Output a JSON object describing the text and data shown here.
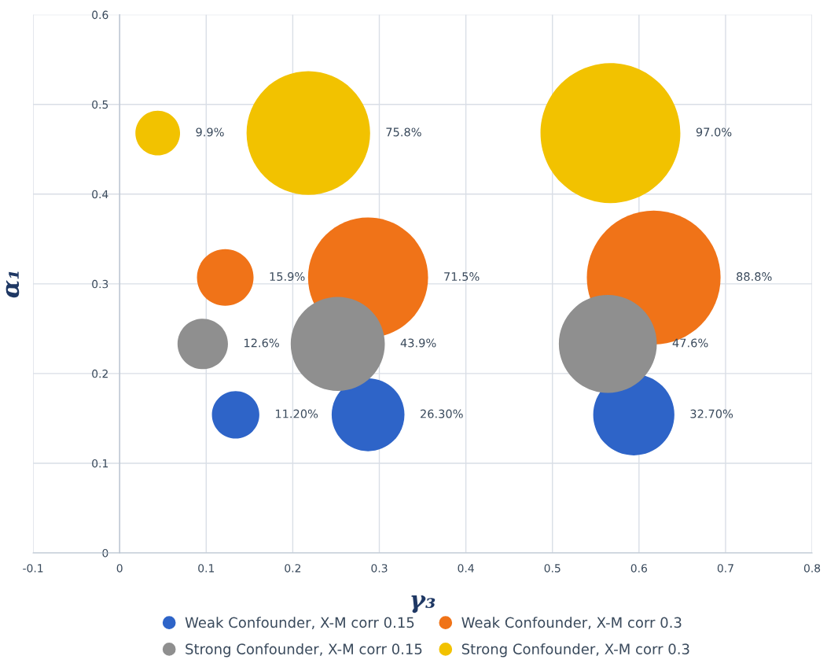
{
  "chart_data": {
    "type": "bubble",
    "xlabel": "γ₃",
    "ylabel": "α₁",
    "xlim": [
      -0.1,
      0.8
    ],
    "xticks": [
      -0.1,
      0,
      0.1,
      0.2,
      0.3,
      0.4,
      0.5,
      0.6,
      0.7,
      0.8
    ],
    "ylim": [
      0,
      0.6
    ],
    "yticks": [
      0,
      0.1,
      0.2,
      0.3,
      0.4,
      0.5,
      0.6
    ],
    "grid": true,
    "legend": "bottom",
    "marker": "circle",
    "series": [
      {
        "name": "Weak Confounder, X-M corr 0.15",
        "color": "#2e64c8",
        "x": [
          0.134,
          0.287,
          0.594
        ],
        "values": [
          0.154,
          0.154,
          0.154
        ],
        "sizes": [
          0.115,
          0.271,
          0.337
        ]
      },
      {
        "name": "Weak Confounder, X-M corr 0.3",
        "color": "#f07318",
        "x": [
          0.122,
          0.287,
          0.617
        ],
        "values": [
          0.307,
          0.307,
          0.307
        ],
        "sizes": [
          0.164,
          0.737,
          0.915
        ]
      },
      {
        "name": "Strong Confounder, X-M corr 0.15",
        "color": "#8f8f8f",
        "x": [
          0.096,
          0.252,
          0.564
        ],
        "values": [
          0.233,
          0.233,
          0.233
        ],
        "sizes": [
          0.13,
          0.453,
          0.491
        ]
      },
      {
        "name": "Strong Confounder, X-M corr 0.3",
        "color": "#f2c200",
        "x": [
          0.044,
          0.218,
          0.567
        ],
        "values": [
          0.468,
          0.468,
          0.468
        ],
        "sizes": [
          0.102,
          0.781,
          1.0
        ]
      }
    ],
    "annotations": [
      "11.20%",
      "26.30%",
      "32.70%",
      "15.9%",
      "71.5%",
      "88.8%",
      "12.6%",
      "43.9%",
      "47.6%",
      "9.9%",
      "75.8%",
      "97.0%"
    ]
  }
}
